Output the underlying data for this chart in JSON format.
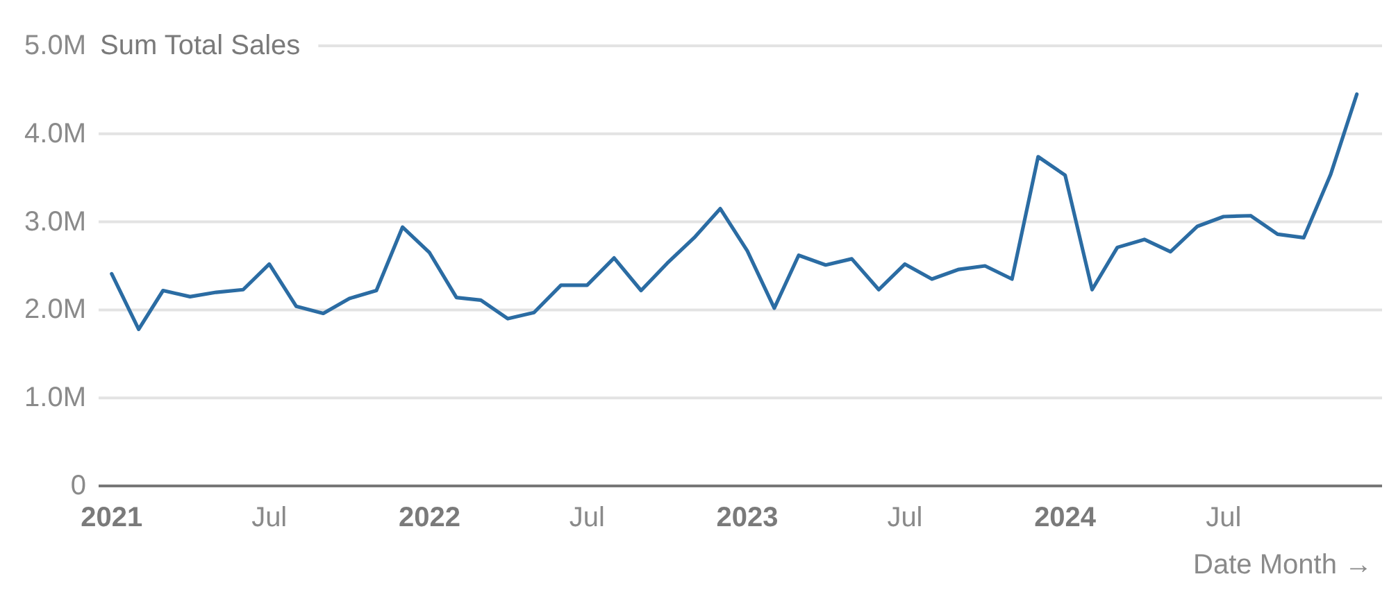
{
  "chart_data": {
    "type": "line",
    "ylabel": "Sum Total Sales",
    "xlabel": "Date Month →",
    "x": [
      "2021-01",
      "2021-02",
      "2021-03",
      "2021-04",
      "2021-05",
      "2021-06",
      "2021-07",
      "2021-08",
      "2021-09",
      "2021-10",
      "2021-11",
      "2021-12",
      "2022-01",
      "2022-02",
      "2022-03",
      "2022-04",
      "2022-05",
      "2022-06",
      "2022-07",
      "2022-08",
      "2022-09",
      "2022-10",
      "2022-11",
      "2022-12",
      "2023-01",
      "2023-02",
      "2023-03",
      "2023-04",
      "2023-05",
      "2023-06",
      "2023-07",
      "2023-08",
      "2023-09",
      "2023-10",
      "2023-11",
      "2023-12",
      "2024-01",
      "2024-02",
      "2024-03",
      "2024-04",
      "2024-05",
      "2024-06",
      "2024-07",
      "2024-08",
      "2024-09",
      "2024-10",
      "2024-11",
      "2024-12"
    ],
    "series": [
      {
        "color": "#2b6ca3",
        "values": [
          2410000,
          1780000,
          2220000,
          2150000,
          2200000,
          2230000,
          2520000,
          2040000,
          1960000,
          2130000,
          2220000,
          2940000,
          2650000,
          2140000,
          2110000,
          1900000,
          1970000,
          2280000,
          2280000,
          2590000,
          2220000,
          2530000,
          2820000,
          3150000,
          2670000,
          2020000,
          2620000,
          2510000,
          2580000,
          2230000,
          2520000,
          2350000,
          2460000,
          2500000,
          2350000,
          3740000,
          3530000,
          2230000,
          2710000,
          2800000,
          2660000,
          2950000,
          3060000,
          3070000,
          2860000,
          2820000,
          3540000,
          4450000
        ]
      }
    ],
    "xlim": [
      "2020-12-17",
      "2024-12-30"
    ],
    "xticks": [
      {
        "value": "2021-01",
        "label": "2021"
      },
      {
        "value": "2021-07",
        "label": "Jul"
      },
      {
        "value": "2022-01",
        "label": "2022"
      },
      {
        "value": "2022-07",
        "label": "Jul"
      },
      {
        "value": "2023-01",
        "label": "2023"
      },
      {
        "value": "2023-07",
        "label": "Jul"
      },
      {
        "value": "2024-01",
        "label": "2024"
      },
      {
        "value": "2024-07",
        "label": "Jul"
      }
    ],
    "ylim": [
      0,
      5000000
    ],
    "yticks": [
      0,
      {
        "value": 1000000,
        "label": "1.0M"
      },
      {
        "value": 2000000,
        "label": "2.0M"
      },
      {
        "value": 3000000,
        "label": "3.0M"
      },
      {
        "value": 4000000,
        "label": "4.0M"
      },
      {
        "value": 5000000,
        "label": "5.0M"
      }
    ],
    "grid": "y",
    "marker": "none",
    "line_style": "solid"
  }
}
